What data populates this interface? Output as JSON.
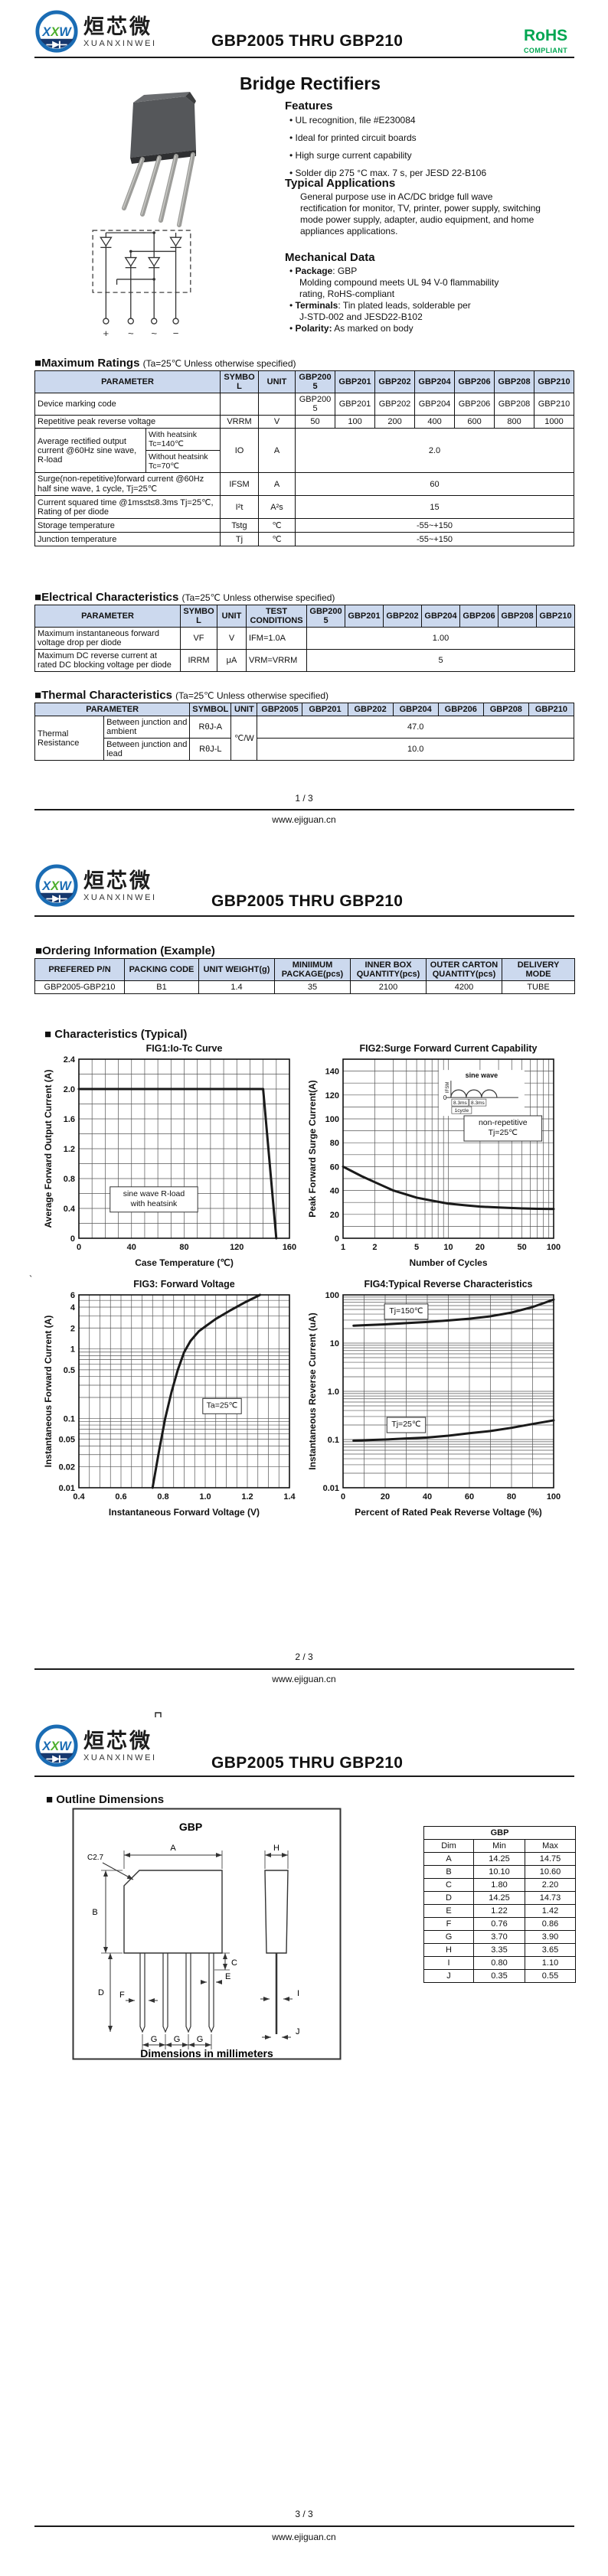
{
  "brand": {
    "badge_x1": "X",
    "badge_x2": "X",
    "badge_w": "W",
    "cn": "烜芯微",
    "en": "XUANXINWEI"
  },
  "doc": {
    "title": "GBP2005 THRU GBP210",
    "site": "www.ejiguan.cn"
  },
  "rohs": {
    "main": "RoHS",
    "sub": "COMPLIANT"
  },
  "colors": {
    "accent_green": "#00a651",
    "table_header": "#ccd9ee",
    "logo_blue": "#1a6cb4",
    "logo_navy": "#16386e",
    "logo_green": "#4caf2e"
  },
  "page1": {
    "main_title": "Bridge Rectifiers",
    "features": {
      "heading": "Features",
      "items": [
        "UL recognition, file #E230084",
        "Ideal for printed circuit boards",
        "High surge current capability",
        "Solder dip 275 °C max. 7 s, per JESD 22-B106"
      ]
    },
    "applications": {
      "heading": "Typical Applications",
      "lines": [
        "General purpose use in AC/DC bridge full wave",
        "rectification for monitor, TV, printer, power supply, switching",
        "mode power supply, adapter, audio equipment, and home",
        "appliances applications."
      ]
    },
    "mechanical": {
      "heading": "Mechanical Data",
      "items": [
        {
          "bold": "Package",
          "rest": ": GBP",
          "cont": [
            "Molding compound meets UL 94 V-0 flammability",
            "rating, RoHS-compliant"
          ]
        },
        {
          "bold": "Terminals",
          "rest": ": Tin plated leads, solderable  per",
          "cont": [
            "J-STD-002 and JESD22-B102"
          ]
        },
        {
          "bold": "Polarity:",
          "rest": " As marked on body",
          "cont": []
        }
      ]
    },
    "schematic": {
      "terminals": [
        "+",
        "~",
        "~",
        "−"
      ]
    },
    "max_ratings": {
      "mark": "■",
      "bold": "Maximum Ratings",
      "cond": "(Ta=25℃ Unless otherwise specified)",
      "rows": [
        [
          {
            "t": "PARAMETER",
            "cs": 2,
            "cl": "th"
          },
          {
            "t": "SYMBOL",
            "cl": "th"
          },
          {
            "t": "UNIT",
            "cl": "th"
          },
          {
            "t": "GBP2005",
            "cl": "th"
          },
          {
            "t": "GBP201",
            "cl": "th"
          },
          {
            "t": "GBP202",
            "cl": "th"
          },
          {
            "t": "GBP204",
            "cl": "th"
          },
          {
            "t": "GBP206",
            "cl": "th"
          },
          {
            "t": "GBP208",
            "cl": "th"
          },
          {
            "t": "GBP210",
            "cl": "th"
          }
        ],
        [
          {
            "t": "Device marking code",
            "cs": 2,
            "cl": "left"
          },
          "",
          "",
          "GBP2005",
          "GBP201",
          "GBP202",
          "GBP204",
          "GBP206",
          "GBP208",
          "GBP210"
        ],
        [
          {
            "t": "Repetitive peak reverse voltage",
            "cs": 2,
            "cl": "left"
          },
          "VRRM",
          "V",
          "50",
          "100",
          "200",
          "400",
          "600",
          "800",
          "1000"
        ],
        [
          {
            "t": "Average rectified output current @60Hz sine wave, R-load",
            "rs": 2,
            "cl": "left"
          },
          {
            "t": "With heatsink Tc=140℃",
            "cl": "left sub"
          },
          {
            "t": "IO",
            "rs": 2
          },
          {
            "t": "A",
            "rs": 2
          },
          {
            "t": "2.0",
            "cs": 7,
            "rs": 2
          }
        ],
        [
          {
            "t": "Without heatsink Tc=70℃",
            "cl": "left sub"
          }
        ],
        [
          {
            "t": "Surge(non-repetitive)forward current @60Hz half sine wave, 1 cycle, Tj=25℃",
            "cs": 2,
            "cl": "left"
          },
          "IFSM",
          "A",
          {
            "t": "60",
            "cs": 7
          }
        ],
        [
          {
            "t": "Current squared time @1ms≤t≤8.3ms Tj=25℃, Rating of per diode",
            "cs": 2,
            "cl": "left"
          },
          "I²t",
          "A²s",
          {
            "t": "15",
            "cs": 7
          }
        ],
        [
          {
            "t": "Storage temperature",
            "cs": 2,
            "cl": "left"
          },
          "Tstg",
          "℃",
          {
            "t": "-55~+150",
            "cs": 7
          }
        ],
        [
          {
            "t": "Junction temperature",
            "cs": 2,
            "cl": "left"
          },
          "Tj",
          "℃",
          {
            "t": "-55~+150",
            "cs": 7
          }
        ]
      ]
    },
    "electrical": {
      "mark": "■",
      "bold": "Electrical Characteristics",
      "cond": "(Ta=25℃ Unless otherwise specified)",
      "rows": [
        [
          {
            "t": "PARAMETER",
            "cl": "th"
          },
          {
            "t": "SYMBOL",
            "cl": "th"
          },
          {
            "t": "UNIT",
            "cl": "th"
          },
          {
            "t": "TEST CONDITIONS",
            "cl": "th"
          },
          {
            "t": "GBP2005",
            "cl": "th"
          },
          {
            "t": "GBP201",
            "cl": "th"
          },
          {
            "t": "GBP202",
            "cl": "th"
          },
          {
            "t": "GBP204",
            "cl": "th"
          },
          {
            "t": "GBP206",
            "cl": "th"
          },
          {
            "t": "GBP208",
            "cl": "th"
          },
          {
            "t": "GBP210",
            "cl": "th"
          }
        ],
        [
          {
            "t": "Maximum instantaneous forward voltage drop per diode",
            "cl": "left"
          },
          "VF",
          "V",
          {
            "t": "IFM=1.0A",
            "cl": "left"
          },
          {
            "t": "1.00",
            "cs": 7
          }
        ],
        [
          {
            "t": "Maximum DC reverse current at rated DC blocking voltage per diode",
            "cl": "left"
          },
          "IRRM",
          "μA",
          {
            "t": "VRM=VRRM",
            "cl": "left"
          },
          {
            "t": "5",
            "cs": 7
          }
        ]
      ]
    },
    "thermal": {
      "mark": "■",
      "bold": "Thermal Characteristics",
      "cond": "(Ta=25℃ Unless otherwise specified)",
      "rows": [
        [
          {
            "t": "PARAMETER",
            "cs": 2,
            "cl": "th"
          },
          {
            "t": "SYMBOL",
            "cl": "th"
          },
          {
            "t": "UNIT",
            "cl": "th"
          },
          {
            "t": "GBP2005",
            "cl": "th"
          },
          {
            "t": "GBP201",
            "cl": "th"
          },
          {
            "t": "GBP202",
            "cl": "th"
          },
          {
            "t": "GBP204",
            "cl": "th"
          },
          {
            "t": "GBP206",
            "cl": "th"
          },
          {
            "t": "GBP208",
            "cl": "th"
          },
          {
            "t": "GBP210",
            "cl": "th"
          }
        ],
        [
          {
            "t": "Thermal Resistance",
            "rs": 2,
            "cl": "left"
          },
          {
            "t": "Between junction and ambient",
            "cl": "left"
          },
          "RθJ-A",
          {
            "t": "℃/W",
            "rs": 2
          },
          {
            "t": "47.0",
            "cs": 7
          }
        ],
        [
          {
            "t": "Between junction and lead",
            "cl": "left"
          },
          "RθJ-L",
          {
            "t": "10.0",
            "cs": 7
          }
        ]
      ]
    },
    "footer": {
      "page": "1 / 3"
    }
  },
  "page2": {
    "stray": "`",
    "ordering": {
      "mark": "■",
      "bold": "Ordering Information (Example)",
      "rows": [
        [
          {
            "t": "PREFERED P/N",
            "cl": "th"
          },
          {
            "t": "PACKING CODE",
            "cl": "th"
          },
          {
            "t": "UNIT WEIGHT(g)",
            "cl": "th"
          },
          {
            "t": "MINIIMUM PACKAGE(pcs)",
            "cl": "th"
          },
          {
            "t": "INNER BOX QUANTITY(pcs)",
            "cl": "th"
          },
          {
            "t": "OUTER CARTON QUANTITY(pcs)",
            "cl": "th"
          },
          {
            "t": "DELIVERY MODE",
            "cl": "th"
          }
        ],
        [
          "GBP2005-GBP210",
          "B1",
          "1.4",
          "35",
          "2100",
          "4200",
          "TUBE"
        ]
      ]
    },
    "characteristics": {
      "mark": "■",
      "bold": " Characteristics (Typical)"
    },
    "footer": {
      "page": "2 / 3"
    }
  },
  "page3": {
    "outline": {
      "mark": "■",
      "bold": " Outline Dimensions"
    },
    "drawing": {
      "pkg": "GBP",
      "chamfer": "C2.7",
      "note": "Dimensions in millimeters",
      "dims": [
        "A",
        "B",
        "C",
        "D",
        "E",
        "F",
        "G",
        "H",
        "I",
        "J"
      ]
    },
    "dim_table": {
      "rows": [
        [
          {
            "t": "GBP",
            "cs": 3,
            "cl": "title"
          }
        ],
        [
          "Dim",
          "Min",
          "Max"
        ],
        [
          "A",
          "14.25",
          "14.75"
        ],
        [
          "B",
          "10.10",
          "10.60"
        ],
        [
          "C",
          "1.80",
          "2.20"
        ],
        [
          "D",
          "14.25",
          "14.73"
        ],
        [
          "E",
          "1.22",
          "1.42"
        ],
        [
          "F",
          "0.76",
          "0.86"
        ],
        [
          "G",
          "3.70",
          "3.90"
        ],
        [
          "H",
          "3.35",
          "3.65"
        ],
        [
          "I",
          "0.80",
          "1.10"
        ],
        [
          "J",
          "0.35",
          "0.55"
        ]
      ]
    },
    "footer": {
      "page": "3 / 3"
    }
  },
  "chart_data": [
    {
      "id": "fig1",
      "type": "line",
      "title": "FIG1:Io-Tc Curve",
      "xlabel": "Case Temperature (℃)",
      "ylabel": "Average Forward Output Current (A)",
      "xscale": "linear",
      "yscale": "linear",
      "xlim": [
        0,
        160
      ],
      "ylim": [
        0,
        2.4
      ],
      "xticks": [
        "0",
        "40",
        "80",
        "120",
        "160"
      ],
      "yticks": [
        "0",
        "0.4",
        "0.8",
        "1.2",
        "1.6",
        "2.0",
        "2.4"
      ],
      "xminor": 10,
      "yminor": 0.2,
      "grid": true,
      "legend": "none",
      "series": [
        {
          "name": "Io vs Tc, sine wave R-load with heatsink",
          "x": [
            0,
            140,
            150
          ],
          "y": [
            2.0,
            2.0,
            0
          ]
        }
      ],
      "annotations": [
        {
          "text": [
            "sine wave R-load",
            "with heatsink"
          ],
          "x": 57,
          "y": 0.52,
          "box": true
        }
      ]
    },
    {
      "id": "fig2",
      "type": "line",
      "title": "FIG2:Surge Forward Current Capability",
      "xlabel": "Number of Cycles",
      "ylabel": "Peak Forward Surge Current(A)",
      "xscale": "log",
      "yscale": "linear",
      "xlim": [
        1,
        100
      ],
      "ylim": [
        0,
        150
      ],
      "xticks": [
        "1",
        "2",
        "5",
        "10",
        "20",
        "50",
        "100"
      ],
      "yticks": [
        "0",
        "20",
        "40",
        "60",
        "80",
        "100",
        "120",
        "140"
      ],
      "yminor": 10,
      "grid": true,
      "legend": "none",
      "series": [
        {
          "name": "IFSM non-repetitive Tj=25℃",
          "x": [
            1,
            1.5,
            2,
            3,
            5,
            7,
            10,
            15,
            20,
            30,
            50,
            70,
            100
          ],
          "y": [
            60,
            52,
            47,
            40,
            34,
            31.5,
            29,
            27.5,
            26.5,
            25.8,
            25,
            24.7,
            24.5
          ]
        }
      ],
      "annotations": [
        {
          "type": "sine_inset",
          "x": 20,
          "y": 123,
          "title": "sine wave",
          "cycles": [
            "8.3ms",
            "8.3ms"
          ],
          "cycle_label": "1cycle",
          "zero": "0",
          "yaxis": "IFSM"
        },
        {
          "text": [
            "non-repetitive",
            "Tj=25℃"
          ],
          "x": 33,
          "y": 92,
          "box": true
        }
      ]
    },
    {
      "id": "fig3",
      "type": "line",
      "title": "FIG3: Forward Voltage",
      "xlabel": "Instantaneous Forward Voltage (V)",
      "ylabel": "Instantaneous Forward Current (A)",
      "xscale": "linear",
      "yscale": "log",
      "xlim": [
        0.4,
        1.4
      ],
      "ylim": [
        0.01,
        6
      ],
      "xticks": [
        "0.4",
        "0.6",
        "0.8",
        "1.0",
        "1.2",
        "1.4"
      ],
      "yticks": [
        "0.01",
        "0.02",
        "0.05",
        "0.1",
        "0.5",
        "1",
        "2",
        "4",
        "6"
      ],
      "xminor": 0.05,
      "grid": true,
      "legend": "none",
      "series": [
        {
          "name": "VF at Ta=25℃",
          "x": [
            0.75,
            0.78,
            0.81,
            0.84,
            0.87,
            0.9,
            0.93,
            0.97,
            1.0,
            1.05,
            1.12,
            1.19,
            1.26
          ],
          "y": [
            0.01,
            0.033,
            0.1,
            0.24,
            0.5,
            0.9,
            1.3,
            1.8,
            2.1,
            2.7,
            3.6,
            4.7,
            6.0
          ]
        }
      ],
      "annotations": [
        {
          "text": [
            "Ta=25℃"
          ],
          "x": 1.08,
          "y": 0.15,
          "box": true
        }
      ]
    },
    {
      "id": "fig4",
      "type": "line",
      "title": "FIG4:Typical Reverse Characteristics",
      "xlabel": "Percent of Rated Peak Reverse Voltage  (%)",
      "ylabel": "Instantaneous Reverse Current (uA)",
      "xscale": "linear",
      "yscale": "log",
      "xlim": [
        0,
        100
      ],
      "ylim": [
        0.01,
        100
      ],
      "xticks": [
        "0",
        "20",
        "40",
        "60",
        "80",
        "100"
      ],
      "yticks": [
        "0.01",
        "0.1",
        "1.0",
        "10",
        "100"
      ],
      "xminor": 10,
      "grid": true,
      "legend": "none",
      "series": [
        {
          "name": "Tj=150℃",
          "x": [
            5,
            10,
            20,
            30,
            40,
            50,
            60,
            70,
            80,
            90,
            100
          ],
          "y": [
            23,
            23.5,
            24.5,
            26,
            27.5,
            29.5,
            32,
            36,
            43,
            56,
            80
          ]
        },
        {
          "name": "Tj=25℃",
          "x": [
            5,
            10,
            20,
            30,
            40,
            50,
            60,
            70,
            80,
            90,
            100
          ],
          "y": [
            0.095,
            0.097,
            0.1,
            0.105,
            0.11,
            0.12,
            0.135,
            0.15,
            0.175,
            0.21,
            0.25
          ]
        }
      ],
      "annotations": [
        {
          "text": [
            "Tj=150℃"
          ],
          "x": 30,
          "y": 45,
          "box": true
        },
        {
          "text": [
            "Tj=25℃"
          ],
          "x": 30,
          "y": 0.2,
          "box": true
        }
      ]
    }
  ]
}
